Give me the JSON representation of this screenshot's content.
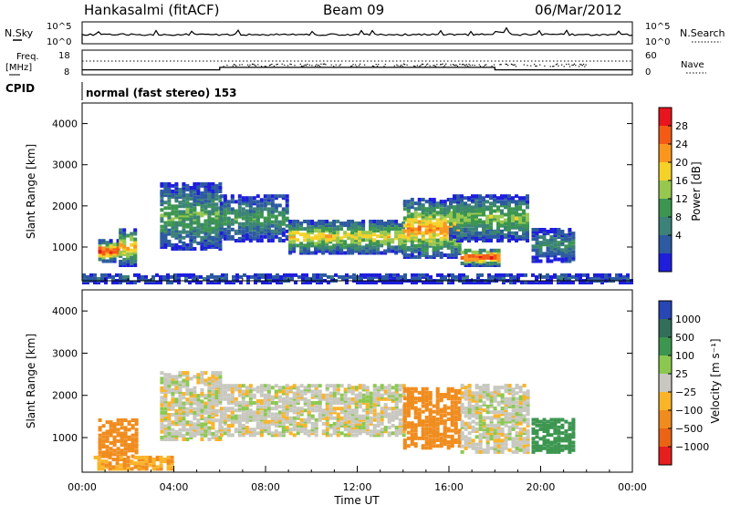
{
  "header": {
    "station": "Hankasalmi (fitACF)",
    "beam": "Beam 09",
    "date": "06/Mar/2012"
  },
  "top_panels": {
    "nsky_label": "N.Sky",
    "nsearch_label": "N.Search",
    "noise_ticks": [
      "10^5",
      "10^0"
    ],
    "freq_label": "Freq.",
    "freq_unit": "[MHz]",
    "freq_ticks": [
      "18",
      "8"
    ],
    "nave_label": "Nave",
    "nave_ticks": [
      "60",
      "0"
    ],
    "cpid_label": "CPID",
    "cpid_text": "normal (fast stereo) 153"
  },
  "power_colorbar": {
    "label": "Power [dB]",
    "ticks": [
      "28",
      "24",
      "20",
      "16",
      "12",
      "8",
      "4"
    ],
    "colors": [
      "#e8141e",
      "#f45a14",
      "#fa961e",
      "#f5d228",
      "#96c850",
      "#3c9650",
      "#3c8278",
      "#2d5aa0",
      "#1e1edc"
    ]
  },
  "velocity_colorbar": {
    "label": "Velocity [m s⁻¹]",
    "ticks": [
      "1000",
      "500",
      "100",
      "25",
      "−25",
      "−100",
      "−500",
      "−1000"
    ],
    "colors": [
      "#2846b4",
      "#326e5a",
      "#3c9650",
      "#8cc850",
      "#c8c8c0",
      "#fab428",
      "#f08c1e",
      "#eb6414",
      "#e61e1e"
    ]
  },
  "chart_data": [
    {
      "type": "line",
      "title": "",
      "xlabel": "",
      "ylabel": "N.Sky",
      "scale": "log",
      "ylim": [
        "10^0",
        "10^5"
      ],
      "series": [
        {
          "name": "N.Sky",
          "x": [
            "00:00",
            "24:00"
          ],
          "values": "near 10^5 throughout"
        },
        {
          "name": "N.Search",
          "values": "flat"
        }
      ]
    },
    {
      "type": "line",
      "ylabel": "Freq. [MHz]",
      "ylim": [
        8,
        18
      ],
      "series": [
        {
          "name": "Freq.",
          "x": [
            "00:00",
            "06:00",
            "06:00",
            "18:00",
            "18:00",
            "24:00"
          ],
          "values": [
            10,
            10,
            11,
            11,
            10,
            10
          ]
        },
        {
          "name": "Nave",
          "ylim": [
            0,
            60
          ],
          "values": "about 45, scattered 18:00–24:00"
        }
      ]
    },
    {
      "type": "heatmap",
      "quantity": "Power",
      "unit": "dB",
      "xlabel": "Time UT",
      "ylabel": "Slant Range [km]",
      "x_ticks": [
        "00:00",
        "04:00",
        "08:00",
        "12:00",
        "16:00",
        "20:00",
        "00:00"
      ],
      "y_ticks": [
        1000,
        2000,
        3000,
        4000
      ],
      "xlim": [
        0,
        24
      ],
      "ylim": [
        180,
        4500
      ],
      "clim": [
        0,
        32
      ],
      "regions": [
        {
          "t0": 0.7,
          "t1": 1.5,
          "r0": 700,
          "r1": 1200,
          "peak_db": 30
        },
        {
          "t0": 1.6,
          "t1": 2.3,
          "r0": 600,
          "r1": 1500,
          "peak_db": 22
        },
        {
          "t0": 3.4,
          "t1": 6.0,
          "r0": 1000,
          "r1": 2600,
          "peak_db": 14
        },
        {
          "t0": 6.0,
          "t1": 9.0,
          "r0": 1200,
          "r1": 2300,
          "peak_db": 12
        },
        {
          "t0": 9.0,
          "t1": 14.0,
          "r0": 900,
          "r1": 1700,
          "peak_db": 20
        },
        {
          "t0": 14.0,
          "t1": 16.5,
          "r0": 800,
          "r1": 2200,
          "peak_db": 24
        },
        {
          "t0": 16.5,
          "t1": 18.2,
          "r0": 600,
          "r1": 1000,
          "peak_db": 30
        },
        {
          "t0": 16.0,
          "t1": 19.5,
          "r0": 1200,
          "r1": 2300,
          "peak_db": 16
        },
        {
          "t0": 19.6,
          "t1": 21.5,
          "r0": 700,
          "r1": 1500,
          "peak_db": 10
        },
        {
          "t0": 0.0,
          "t1": 24.0,
          "r0": 180,
          "r1": 400,
          "peak_db": 6
        }
      ]
    },
    {
      "type": "heatmap",
      "quantity": "Velocity",
      "unit": "m s⁻¹",
      "xlabel": "Time UT",
      "ylabel": "Slant Range [km]",
      "x_ticks": [
        "00:00",
        "04:00",
        "08:00",
        "12:00",
        "16:00",
        "20:00",
        "00:00"
      ],
      "y_ticks": [
        1000,
        2000,
        3000,
        4000
      ],
      "xlim": [
        0,
        24
      ],
      "ylim": [
        180,
        4500
      ],
      "regions": [
        {
          "t0": 0.7,
          "t1": 2.3,
          "r0": 600,
          "r1": 1500,
          "velocity": -300
        },
        {
          "t0": 0.5,
          "t1": 4.0,
          "r0": 300,
          "r1": 600,
          "velocity": -100
        },
        {
          "t0": 3.4,
          "t1": 6.0,
          "r0": 1000,
          "r1": 2600,
          "velocity": 0
        },
        {
          "t0": 6.0,
          "t1": 14.0,
          "r0": 1100,
          "r1": 2300,
          "velocity": 0
        },
        {
          "t0": 14.0,
          "t1": 16.5,
          "r0": 800,
          "r1": 2200,
          "velocity": -300
        },
        {
          "t0": 16.5,
          "t1": 19.5,
          "r0": 700,
          "r1": 2300,
          "velocity": 0
        },
        {
          "t0": 19.6,
          "t1": 21.5,
          "r0": 700,
          "r1": 1500,
          "velocity": 150
        }
      ]
    }
  ]
}
